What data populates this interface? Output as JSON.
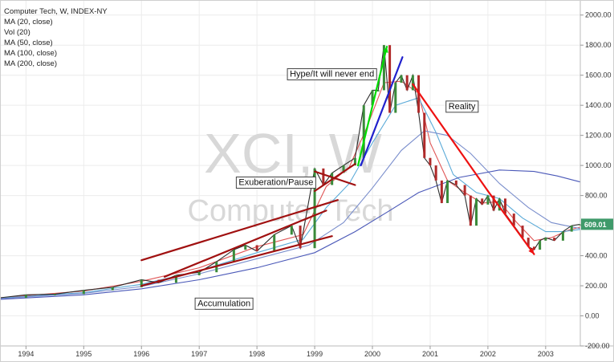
{
  "chart_data": {
    "type": "line",
    "title": "Computer Tech, W, INDEX-NY",
    "watermark": {
      "symbol": "XCI, W",
      "name": "Computer Tech"
    },
    "legend": [
      "MA (20, close)",
      "Vol (20)",
      "MA (50, close)",
      "MA (100, close)",
      "MA (200, close)"
    ],
    "last_price": "609.01",
    "ylim": [
      -200,
      2100
    ],
    "xlim": [
      1993.55,
      2003.6
    ],
    "yticks": [
      "-200.00",
      "0.00",
      "200.00",
      "400.00",
      "600.00",
      "800.00",
      "1000.00",
      "1200.00",
      "1400.00",
      "1600.00",
      "1800.00",
      "2000.00"
    ],
    "xticks": [
      "1994",
      "1995",
      "1996",
      "1997",
      "1998",
      "1999",
      "2000",
      "2001",
      "2002",
      "2003"
    ],
    "grid": true,
    "price": {
      "x": [
        1993.55,
        1994.0,
        1994.5,
        1995.0,
        1995.5,
        1996.0,
        1996.3,
        1996.6,
        1997.0,
        1997.3,
        1997.6,
        1997.8,
        1998.0,
        1998.3,
        1998.6,
        1998.75,
        1999.0,
        1999.15,
        1999.3,
        1999.5,
        1999.7,
        1999.85,
        2000.0,
        2000.1,
        2000.2,
        2000.3,
        2000.4,
        2000.5,
        2000.6,
        2000.7,
        2000.8,
        2000.9,
        2001.0,
        2001.1,
        2001.2,
        2001.3,
        2001.45,
        2001.6,
        2001.7,
        2001.8,
        2001.9,
        2002.0,
        2002.1,
        2002.2,
        2002.3,
        2002.45,
        2002.6,
        2002.7,
        2002.8,
        2002.9,
        2003.0,
        2003.15,
        2003.3,
        2003.45,
        2003.6
      ],
      "y": [
        120,
        140,
        145,
        170,
        190,
        240,
        220,
        270,
        290,
        360,
        440,
        470,
        430,
        540,
        600,
        450,
        980,
        870,
        950,
        1000,
        1050,
        1400,
        1500,
        1500,
        1800,
        1350,
        1550,
        1600,
        1500,
        1600,
        1350,
        1050,
        1000,
        900,
        750,
        900,
        870,
        800,
        600,
        780,
        740,
        800,
        700,
        780,
        680,
        600,
        520,
        460,
        440,
        500,
        520,
        500,
        560,
        600,
        609
      ]
    },
    "moving_averages": [
      {
        "name": "MA (20, close)",
        "color": "#e05555",
        "x": [
          1993.55,
          1995.0,
          1996.0,
          1997.0,
          1998.0,
          1998.8,
          1999.2,
          1999.6,
          1999.9,
          2000.2,
          2000.5,
          2000.8,
          2001.0,
          2001.3,
          2001.6,
          2001.9,
          2002.2,
          2002.5,
          2002.8,
          2003.1,
          2003.4,
          2003.6
        ],
        "y": [
          120,
          165,
          230,
          320,
          460,
          540,
          860,
          990,
          1250,
          1550,
          1560,
          1480,
          1150,
          900,
          820,
          750,
          760,
          620,
          500,
          520,
          570,
          590
        ]
      },
      {
        "name": "MA (50, close)",
        "color": "#5aaad8",
        "x": [
          1993.55,
          1995.0,
          1996.0,
          1997.0,
          1998.0,
          1998.8,
          1999.2,
          1999.6,
          2000.0,
          2000.4,
          2000.8,
          2001.1,
          2001.4,
          2001.8,
          2002.2,
          2002.6,
          2003.0,
          2003.3,
          2003.6
        ],
        "y": [
          118,
          155,
          210,
          300,
          420,
          510,
          720,
          880,
          1150,
          1400,
          1450,
          1220,
          940,
          820,
          780,
          650,
          560,
          560,
          575
        ]
      },
      {
        "name": "MA (100, close)",
        "color": "#7a8ecc",
        "x": [
          1993.55,
          1995.0,
          1996.0,
          1997.0,
          1998.0,
          1998.9,
          1999.5,
          2000.0,
          2000.5,
          2000.9,
          2001.3,
          2001.7,
          2002.2,
          2002.7,
          2003.1,
          2003.6
        ],
        "y": [
          115,
          150,
          195,
          280,
          380,
          470,
          620,
          850,
          1100,
          1230,
          1200,
          1080,
          880,
          720,
          620,
          580
        ]
      },
      {
        "name": "MA (200, close)",
        "color": "#4a58b8",
        "x": [
          1993.55,
          1995.0,
          1996.0,
          1997.0,
          1998.0,
          1999.0,
          1999.7,
          2000.3,
          2000.8,
          2001.5,
          2002.2,
          2002.8,
          2003.2,
          2003.6
        ],
        "y": [
          110,
          140,
          180,
          240,
          320,
          420,
          560,
          700,
          820,
          920,
          970,
          960,
          930,
          890
        ]
      }
    ],
    "trend_lines": [
      {
        "color": "#a01010",
        "x": [
          1996.0,
          1999.4
        ],
        "y": [
          370,
          770
        ]
      },
      {
        "color": "#a01010",
        "x": [
          1996.0,
          1999.3
        ],
        "y": [
          200,
          530
        ]
      },
      {
        "color": "#a01010",
        "x": [
          1996.4,
          1999.2
        ],
        "y": [
          260,
          700
        ]
      },
      {
        "color": "#a01010",
        "x": [
          1999.0,
          1999.7
        ],
        "y": [
          960,
          870
        ]
      },
      {
        "color": "#a01010",
        "x": [
          1999.0,
          1999.7
        ],
        "y": [
          830,
          1010
        ]
      },
      {
        "color": "#00dd00",
        "x": [
          1999.75,
          2000.25
        ],
        "y": [
          1000,
          1790
        ]
      },
      {
        "color": "#2020cc",
        "x": [
          1999.8,
          2000.52
        ],
        "y": [
          1000,
          1720
        ]
      },
      {
        "color": "#ee1111",
        "x": [
          2000.7,
          2002.0
        ],
        "y": [
          1540,
          830
        ]
      },
      {
        "color": "#ee1111",
        "x": [
          2002.0,
          2002.8
        ],
        "y": [
          830,
          410
        ]
      }
    ],
    "annotations": [
      {
        "text": "Hype/It will never end",
        "x": 1999.3,
        "y": 1590
      },
      {
        "text": "Reality",
        "x": 2001.55,
        "y": 1375
      },
      {
        "text": "Exuberation/Pause",
        "x": 1998.33,
        "y": 870
      },
      {
        "text": "Accumulation",
        "x": 1997.43,
        "y": 65
      }
    ]
  }
}
